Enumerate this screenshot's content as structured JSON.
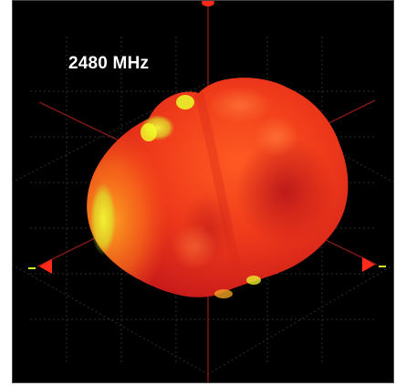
{
  "frequency_label": "2480 MHz",
  "colors": {
    "background": "#000000",
    "pattern_hot": "#f0451b",
    "pattern_deep": "#c8171b",
    "pattern_warm": "#ff8a1a",
    "pattern_yellow": "#f2ff2a",
    "axis_line": "#8a1a1a",
    "grid_line": "#2e2e2e"
  },
  "icons": [
    "x-axis-arrow-icon",
    "y-axis-arrow-icon",
    "z-axis-arrow-icon"
  ]
}
